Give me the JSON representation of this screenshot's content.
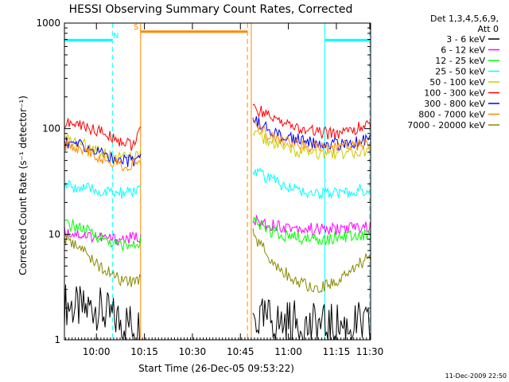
{
  "chart_data": {
    "type": "line",
    "title": "HESSI Observing Summary Count Rates, Corrected",
    "xlabel": "Start Time (26-Dec-05 09:53:22)",
    "ylabel": "Corrected Count Rate (s⁻¹ detector⁻¹)",
    "y_scale": "log",
    "ylim": [
      1,
      1000
    ],
    "xlim_minutes": [
      -3.4,
      92.3
    ],
    "x_tick_labels": [
      "10:00",
      "10:15",
      "10:30",
      "10:45",
      "11:00",
      "11:15",
      "11:30"
    ],
    "x_tick_minutes": [
      6.6,
      21.6,
      36.6,
      51.6,
      66.6,
      81.6,
      96.6
    ],
    "y_tick_labels": [
      "1",
      "10",
      "100",
      "1000"
    ],
    "y_tick_values": [
      1,
      10,
      100,
      1000
    ],
    "legend": {
      "header": [
        "Det 1,3,4,5,6,9,",
        "Att 0"
      ],
      "placement": "right"
    },
    "series": [
      {
        "name": "3 - 6 keV",
        "color": "#000000",
        "segments": [
          {
            "t": [
              -3.4,
              0,
              3,
              6,
              9,
              12,
              15,
              18,
              20.5
            ],
            "v": [
              2.2,
              2.0,
              1.9,
              2.1,
              1.8,
              1.6,
              1.5,
              1.4,
              1.3
            ]
          },
          {
            "t": [
              55.5,
              58,
              61,
              64,
              67,
              70,
              73,
              76,
              79,
              82,
              85,
              88,
              92.3
            ],
            "v": [
              1.6,
              1.5,
              1.6,
              1.4,
              1.5,
              1.4,
              1.3,
              1.4,
              1.3,
              1.4,
              1.3,
              1.4,
              1.3
            ]
          }
        ]
      },
      {
        "name": "6 - 12 keV",
        "color": "#ff00ff",
        "segments": [
          {
            "t": [
              -3.4,
              0,
              3,
              6,
              9,
              12,
              15,
              18,
              20.5
            ],
            "v": [
              10.5,
              10.2,
              9.8,
              9.5,
              9.2,
              9.0,
              9.0,
              9.2,
              9.6
            ]
          },
          {
            "t": [
              55.5,
              58,
              61,
              64,
              67,
              70,
              73,
              76,
              79,
              82,
              85,
              88,
              92.3
            ],
            "v": [
              13.5,
              13.0,
              12.5,
              12.0,
              11.7,
              11.4,
              11.2,
              11.1,
              11.1,
              11.2,
              11.4,
              11.6,
              11.8
            ]
          }
        ]
      },
      {
        "name": "12 - 25 keV",
        "color": "#00ff00",
        "segments": [
          {
            "t": [
              -3.4,
              0,
              3,
              6,
              9,
              12,
              15,
              18,
              20.5
            ],
            "v": [
              12.5,
              12.0,
              11.0,
              10.0,
              9.0,
              8.2,
              7.8,
              7.7,
              8.5
            ]
          },
          {
            "t": [
              55.5,
              58,
              61,
              64,
              67,
              70,
              73,
              76,
              79,
              82,
              85,
              88,
              92.3
            ],
            "v": [
              13.0,
              11.8,
              10.8,
              10.0,
              9.5,
              9.2,
              9.0,
              9.0,
              9.1,
              9.3,
              9.5,
              9.7,
              9.9
            ]
          }
        ]
      },
      {
        "name": "25 - 50 keV",
        "color": "#00ffff",
        "segments": [
          {
            "t": [
              -3.4,
              0,
              3,
              6,
              9,
              12,
              15,
              18,
              20.5
            ],
            "v": [
              29,
              28,
              27,
              26,
              25,
              24.5,
              24.5,
              25,
              28
            ]
          },
          {
            "t": [
              55.5,
              58,
              61,
              64,
              67,
              70,
              73,
              76,
              79,
              82,
              85,
              88,
              92.3
            ],
            "v": [
              42,
              37,
              33,
              30,
              28,
              26,
              25,
              24.5,
              24,
              24.5,
              25,
              26,
              27
            ]
          }
        ]
      },
      {
        "name": "50 - 100 keV",
        "color": "#cccc00",
        "segments": [
          {
            "t": [
              -3.4,
              0,
              3,
              6,
              9,
              12,
              15,
              18,
              20.5
            ],
            "v": [
              78,
              75,
              70,
              65,
              60,
              56,
              53,
              54,
              60
            ]
          },
          {
            "t": [
              55.5,
              58,
              61,
              64,
              67,
              70,
              73,
              76,
              79,
              82,
              85,
              88,
              92.3
            ],
            "v": [
              95,
              83,
              74,
              68,
              63,
              60,
              58,
              57,
              57,
              58,
              59,
              60,
              62
            ]
          }
        ]
      },
      {
        "name": "100 - 300 keV",
        "color": "#ff0000",
        "segments": [
          {
            "t": [
              -3.4,
              0,
              3,
              6,
              9,
              12,
              15,
              18,
              20.5
            ],
            "v": [
              112,
              110,
              105,
              98,
              90,
              82,
              75,
              70,
              95
            ]
          },
          {
            "t": [
              55.5,
              58,
              61,
              64,
              67,
              70,
              73,
              76,
              79,
              82,
              85,
              88,
              92.3
            ],
            "v": [
              160,
              145,
              130,
              118,
              108,
              100,
              95,
              92,
              90,
              91,
              94,
              100,
              108
            ]
          }
        ]
      },
      {
        "name": "300 - 800 keV",
        "color": "#0000ff",
        "segments": [
          {
            "t": [
              -3.4,
              0,
              3,
              6,
              9,
              12,
              15,
              18,
              20.5
            ],
            "v": [
              75,
              72,
              67,
              62,
              57,
              53,
              50,
              49,
              54
            ]
          },
          {
            "t": [
              55.5,
              58,
              61,
              64,
              67,
              70,
              73,
              76,
              79,
              82,
              85,
              88,
              92.3
            ],
            "v": [
              125,
              108,
              96,
              88,
              82,
              78,
              75,
              73,
              72,
              72,
              73,
              75,
              78
            ]
          }
        ]
      },
      {
        "name": "800 - 7000 keV",
        "color": "#ff8800",
        "segments": [
          {
            "t": [
              -3.4,
              0,
              3,
              6,
              9,
              12,
              15,
              18,
              20.5
            ],
            "v": [
              70,
              68,
              63,
              57,
              52,
              48,
              45,
              44,
              50
            ]
          },
          {
            "t": [
              55.5,
              58,
              61,
              64,
              67,
              70,
              73,
              76,
              79,
              82,
              85,
              88,
              92.3
            ],
            "v": [
              110,
              96,
              85,
              78,
              73,
              70,
              68,
              67,
              67,
              67,
              68,
              69,
              70
            ]
          }
        ]
      },
      {
        "name": "7000 - 20000 keV",
        "color": "#888800",
        "segments": [
          {
            "t": [
              -3.4,
              0,
              3,
              6,
              9,
              12,
              15,
              18,
              20.5
            ],
            "v": [
              9.0,
              8.0,
              6.8,
              5.5,
              4.6,
              4.0,
              3.6,
              3.5,
              3.8
            ]
          },
          {
            "t": [
              55.5,
              58,
              61,
              64,
              67,
              70,
              73,
              76,
              79,
              82,
              85,
              88,
              92.3
            ],
            "v": [
              10.0,
              8.0,
              6.0,
              4.8,
              4.0,
              3.5,
              3.3,
              3.2,
              3.3,
              3.6,
              4.2,
              5.0,
              6.2
            ]
          }
        ]
      }
    ],
    "annotations": {
      "vertical_lines": [
        {
          "t": 11.6,
          "color": "#00ffff",
          "style": "dashed"
        },
        {
          "t": 20.4,
          "color": "#ff8800",
          "style": "solid"
        },
        {
          "t": 53.8,
          "color": "#ff8800",
          "style": "dashed"
        },
        {
          "t": 55.0,
          "color": "#ff8800",
          "style": "solid"
        },
        {
          "t": 78.0,
          "color": "#00ffff",
          "style": "solid"
        },
        {
          "t": 92.0,
          "color": "#00ffff",
          "style": "dashed"
        }
      ],
      "bars": [
        {
          "t0": -3.4,
          "t1": 11.6,
          "level": 690,
          "color": "#00ffff"
        },
        {
          "t0": 20.4,
          "t1": 53.8,
          "level": 830,
          "color": "#ff8800"
        },
        {
          "t0": 78.0,
          "t1": 92.0,
          "level": 690,
          "color": "#00ffff"
        }
      ],
      "labels": [
        {
          "text": "N",
          "t": 12.7,
          "level": 720,
          "color": "#00ffff"
        },
        {
          "text": "S",
          "t": 19.0,
          "level": 870,
          "color": "#ff8800"
        }
      ]
    },
    "footer_date": "11-Dec-2009 22:50"
  }
}
